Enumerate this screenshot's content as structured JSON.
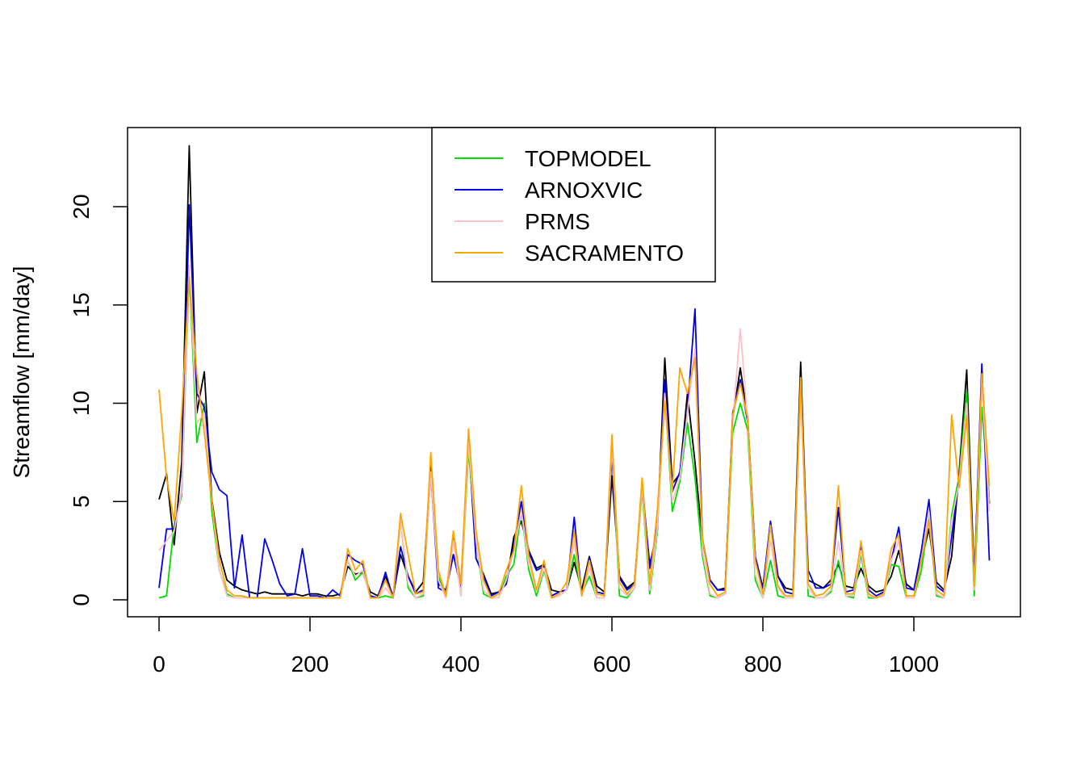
{
  "chart_data": {
    "type": "line",
    "title": "",
    "xlabel": "",
    "ylabel": "Streamflow [mm/day]",
    "xlim": [
      0,
      1100
    ],
    "ylim": [
      0,
      23
    ],
    "x_ticks": [
      0,
      200,
      400,
      600,
      800,
      1000
    ],
    "x_tick_labels": [
      "0",
      "200",
      "400",
      "600",
      "800",
      "1000"
    ],
    "y_ticks": [
      0,
      5,
      10,
      15,
      20
    ],
    "y_tick_labels": [
      "0",
      "5",
      "10",
      "15",
      "20"
    ],
    "grid": false,
    "legend_position": "top-center",
    "x_step": 10,
    "series": [
      {
        "name": "",
        "color": "#000000",
        "values": [
          5.1,
          6.4,
          2.8,
          7.0,
          23.1,
          9.5,
          11.6,
          5.1,
          2.4,
          1.0,
          0.7,
          0.5,
          0.4,
          0.3,
          0.4,
          0.3,
          0.3,
          0.3,
          0.3,
          0.2,
          0.3,
          0.3,
          0.2,
          0.2,
          0.3,
          1.7,
          1.3,
          1.4,
          0.4,
          0.2,
          1.2,
          0.2,
          2.3,
          1.2,
          0.4,
          0.9,
          6.8,
          0.8,
          0.5,
          2.3,
          0.8,
          8.0,
          2.1,
          1.3,
          0.3,
          0.4,
          0.8,
          3.2,
          4.0,
          2.5,
          1.6,
          1.8,
          0.5,
          0.4,
          0.5,
          1.9,
          0.5,
          2.2,
          0.7,
          0.4,
          6.3,
          1.2,
          0.6,
          0.9,
          5.7,
          1.8,
          3.4,
          12.3,
          5.9,
          6.4,
          10.5,
          7.0,
          3.0,
          1.0,
          0.5,
          0.6,
          9.2,
          11.8,
          9.2,
          2.2,
          0.6,
          3.9,
          1.2,
          0.6,
          0.5,
          12.1,
          1.0,
          0.8,
          0.6,
          1.0,
          1.8,
          0.7,
          0.6,
          1.6,
          0.7,
          0.4,
          0.5,
          1.2,
          2.5,
          0.8,
          0.5,
          2.0,
          3.6,
          0.9,
          0.5,
          2.2,
          6.5,
          11.7,
          1.0,
          11.5,
          4.9
        ]
      },
      {
        "name": "TOPMODEL",
        "color": "#00dd00",
        "values": [
          0.1,
          0.2,
          3.8,
          5.3,
          16.7,
          8.0,
          10.0,
          4.5,
          1.5,
          0.3,
          0.1,
          0.1,
          0.1,
          0.1,
          0.1,
          0.1,
          0.1,
          0.1,
          0.1,
          0.1,
          0.1,
          0.1,
          0.1,
          0.1,
          0.1,
          2.0,
          1.0,
          1.4,
          0.2,
          0.1,
          0.2,
          0.1,
          4.0,
          0.6,
          0.1,
          0.2,
          6.5,
          1.2,
          0.1,
          3.2,
          0.2,
          7.6,
          3.0,
          0.3,
          0.1,
          0.1,
          1.2,
          1.8,
          4.5,
          1.5,
          0.2,
          1.5,
          0.1,
          0.2,
          0.5,
          2.3,
          0.3,
          1.2,
          0.1,
          0.1,
          7.8,
          0.2,
          0.1,
          0.6,
          5.6,
          0.3,
          3.4,
          10.6,
          4.5,
          6.0,
          9.0,
          6.2,
          2.2,
          0.2,
          0.1,
          0.3,
          8.5,
          10.0,
          8.6,
          1.0,
          0.1,
          2.0,
          0.2,
          0.1,
          0.1,
          11.0,
          0.2,
          0.1,
          0.1,
          0.4,
          2.0,
          0.2,
          0.1,
          2.3,
          0.1,
          0.1,
          0.2,
          1.8,
          1.7,
          0.1,
          0.1,
          1.5,
          4.2,
          0.2,
          0.1,
          4.3,
          6.3,
          10.6,
          0.2,
          9.8,
          5.0
        ]
      },
      {
        "name": "ARNOXVIC",
        "color": "#0000ee",
        "values": [
          0.6,
          3.6,
          3.6,
          5.5,
          20.1,
          10.5,
          9.8,
          6.5,
          5.6,
          5.3,
          0.6,
          3.3,
          0.1,
          0.1,
          3.1,
          2.0,
          0.8,
          0.2,
          0.3,
          2.6,
          0.2,
          0.2,
          0.1,
          0.5,
          0.2,
          2.3,
          2.0,
          1.8,
          0.2,
          0.1,
          1.4,
          0.1,
          2.7,
          1.2,
          0.3,
          0.5,
          6.5,
          0.6,
          0.4,
          2.3,
          0.6,
          8.4,
          2.1,
          1.2,
          0.2,
          0.4,
          0.8,
          2.8,
          5.0,
          2.4,
          1.5,
          1.7,
          0.2,
          0.4,
          0.5,
          4.2,
          0.2,
          2.1,
          0.4,
          0.3,
          7.3,
          1.1,
          0.5,
          0.8,
          6.0,
          1.6,
          3.7,
          11.2,
          5.5,
          6.5,
          9.6,
          14.8,
          3.1,
          1.0,
          0.5,
          0.5,
          9.5,
          11.2,
          9.0,
          2.2,
          0.6,
          4.0,
          1.2,
          0.4,
          0.3,
          11.0,
          1.5,
          0.6,
          0.6,
          0.8,
          4.7,
          0.4,
          0.5,
          2.8,
          0.5,
          0.2,
          0.4,
          2.0,
          3.7,
          0.6,
          0.5,
          2.5,
          5.1,
          0.7,
          0.4,
          3.2,
          6.2,
          9.5,
          1.0,
          12.0,
          2.0
        ]
      },
      {
        "name": "PRMS",
        "color": "#ffc0cb",
        "values": [
          2.5,
          3.0,
          3.5,
          5.5,
          17.0,
          9.0,
          9.5,
          5.0,
          1.5,
          0.2,
          0.1,
          0.1,
          0.1,
          0.1,
          0.1,
          0.1,
          0.1,
          0.1,
          0.1,
          0.1,
          0.1,
          0.1,
          0.1,
          0.1,
          0.1,
          2.0,
          1.2,
          1.5,
          0.1,
          0.1,
          0.6,
          0.1,
          4.0,
          0.8,
          0.1,
          0.3,
          6.5,
          1.0,
          0.1,
          3.0,
          0.2,
          8.0,
          3.0,
          0.5,
          0.1,
          0.1,
          1.0,
          2.5,
          4.5,
          1.8,
          0.4,
          1.6,
          0.1,
          0.2,
          0.5,
          3.0,
          0.2,
          1.6,
          0.1,
          0.1,
          7.8,
          0.6,
          0.2,
          0.6,
          5.8,
          0.5,
          3.6,
          10.5,
          5.0,
          6.2,
          9.5,
          12.8,
          2.5,
          0.3,
          0.1,
          0.3,
          9.0,
          13.8,
          9.0,
          1.3,
          0.1,
          3.0,
          0.6,
          0.1,
          0.1,
          10.5,
          0.6,
          0.1,
          0.1,
          0.5,
          3.0,
          0.2,
          0.2,
          2.5,
          0.2,
          0.1,
          0.2,
          2.0,
          3.0,
          0.1,
          0.1,
          2.0,
          4.5,
          0.3,
          0.1,
          4.0,
          6.0,
          10.0,
          0.5,
          11.0,
          4.5
        ]
      },
      {
        "name": "SACRAMENTO",
        "color": "#ffa500",
        "values": [
          10.7,
          6.2,
          4.0,
          9.5,
          16.4,
          11.5,
          8.5,
          5.0,
          2.0,
          0.5,
          0.2,
          0.2,
          0.1,
          0.1,
          0.1,
          0.1,
          0.1,
          0.1,
          0.1,
          0.1,
          0.1,
          0.1,
          0.1,
          0.1,
          0.1,
          2.6,
          1.5,
          2.0,
          0.1,
          0.1,
          1.0,
          0.1,
          4.4,
          2.3,
          0.3,
          0.4,
          7.5,
          1.5,
          0.2,
          3.5,
          0.8,
          8.7,
          3.5,
          1.0,
          0.1,
          0.3,
          1.5,
          2.5,
          5.8,
          2.2,
          0.5,
          2.0,
          0.1,
          0.3,
          0.9,
          3.5,
          0.2,
          2.0,
          0.3,
          0.2,
          8.4,
          0.9,
          0.3,
          0.8,
          6.2,
          0.8,
          4.5,
          10.1,
          5.5,
          11.8,
          10.5,
          12.3,
          3.1,
          0.8,
          0.2,
          0.4,
          9.4,
          11.0,
          9.2,
          2.0,
          0.3,
          3.8,
          0.7,
          0.2,
          0.2,
          11.3,
          0.8,
          0.2,
          0.3,
          0.7,
          5.8,
          0.3,
          0.3,
          3.0,
          0.3,
          0.1,
          0.3,
          2.6,
          3.3,
          0.2,
          0.2,
          2.0,
          4.0,
          0.5,
          0.2,
          9.4,
          5.7,
          9.3,
          0.7,
          11.5,
          5.8
        ]
      }
    ]
  }
}
